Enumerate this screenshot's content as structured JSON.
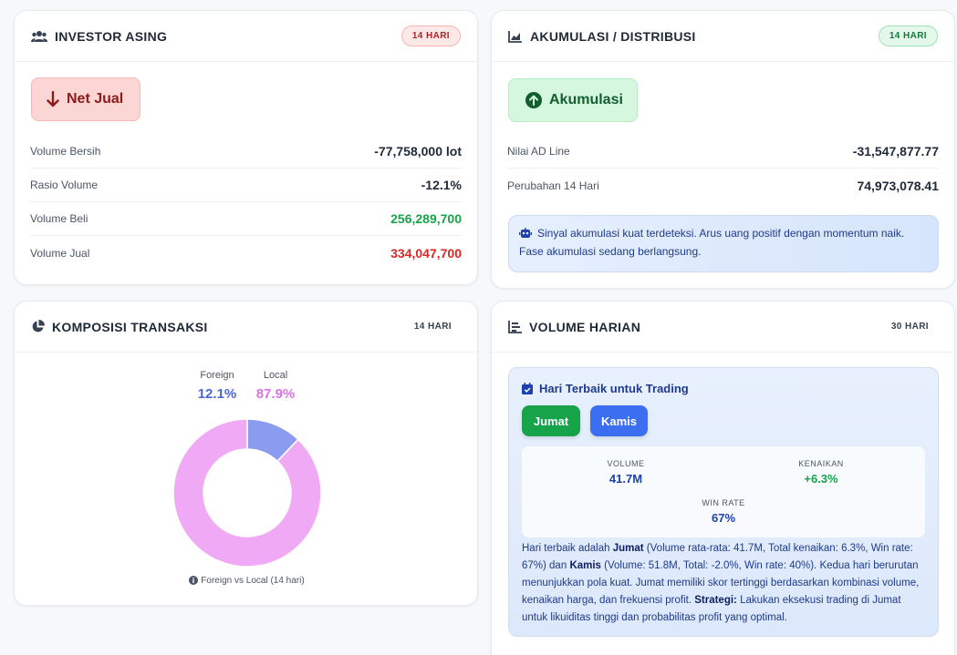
{
  "investor_asing": {
    "title": "INVESTOR ASING",
    "period": "14 HARI",
    "status": "Net Jual",
    "rows": [
      {
        "label": "Volume Bersih",
        "value": "-77,758,000 lot"
      },
      {
        "label": "Rasio Volume",
        "value": "-12.1%"
      },
      {
        "label": "Volume Beli",
        "value": "256,289,700"
      },
      {
        "label": "Volume Jual",
        "value": "334,047,700"
      }
    ]
  },
  "akumulasi": {
    "title": "AKUMULASI / DISTRIBUSI",
    "period": "14 HARI",
    "status": "Akumulasi",
    "rows": [
      {
        "label": "Nilai AD Line",
        "value": "-31,547,877.77"
      },
      {
        "label": "Perubahan 14 Hari",
        "value": "74,973,078.41"
      }
    ],
    "signal": "Sinyal akumulasi kuat terdeteksi. Arus uang positif dengan momentum naik. Fase akumulasi sedang berlangsung."
  },
  "komposisi": {
    "title": "KOMPOSISI TRANSAKSI",
    "period": "14 HARI",
    "foreign_label": "Foreign",
    "foreign_pct": "12.1%",
    "local_label": "Local",
    "local_pct": "87.9%",
    "caption": "Foreign vs Local (14 hari)"
  },
  "chart_data": {
    "type": "pie",
    "categories": [
      "Foreign",
      "Local"
    ],
    "values": [
      12.1,
      87.9
    ],
    "colors": [
      "#8b9cf0",
      "#f0a9f5"
    ]
  },
  "volume_harian": {
    "title": "VOLUME HARIAN",
    "period": "30 HARI",
    "best_title": "Hari Terbaik untuk Trading",
    "days": [
      "Jumat",
      "Kamis"
    ],
    "volume_label": "VOLUME",
    "volume_value": "41.7M",
    "gain_label": "KENAIKAN",
    "gain_value": "+6.3%",
    "winrate_label": "WIN RATE",
    "winrate_value": "67%",
    "desc": {
      "p1": "Hari terbaik adalah ",
      "b1": "Jumat",
      "p2": " (Volume rata-rata: 41.7M, Total kenaikan: 6.3%, Win rate: 67%) dan ",
      "b2": "Kamis",
      "p3": " (Volume: 51.8M, Total: -2.0%, Win rate: 40%). Kedua hari berurutan menunjukkan pola kuat. Jumat memiliki skor tertinggi berdasarkan kombinasi volume, kenaikan harga, dan frekuensi profit. ",
      "b3": "Strategi:",
      "p4": " Lakukan eksekusi trading di Jumat untuk likuiditas tinggi dan probabilitas profit yang optimal."
    }
  },
  "colors": {
    "green": "#16a34a",
    "red": "#dc2626",
    "foreign": "#8b9cf0",
    "local": "#f0a9f5",
    "jumat_btn": "#16a34a",
    "kamis_btn": "#3b6ef0"
  }
}
